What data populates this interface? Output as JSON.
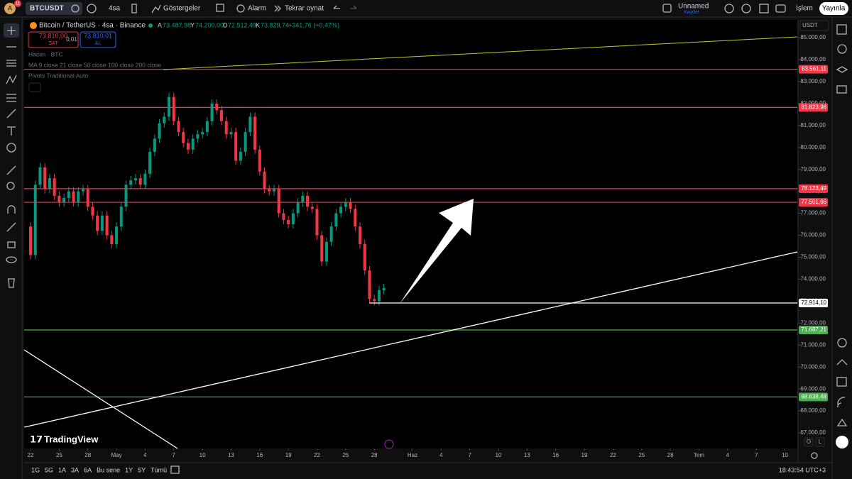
{
  "toolbar": {
    "notifications": "11",
    "symbol": "BTCUSDT",
    "interval": "4sa",
    "indicators": "Göstergeler",
    "alert": "Alarm",
    "replay": "Tekrar oynat",
    "layout_name": "Unnamed",
    "layout_status": "Kaydet",
    "trade": "İşlem",
    "publish": "Yayınla"
  },
  "legend": {
    "title": "Bitcoin / TetherUS · 4sa · Binance",
    "ohlc": [
      {
        "key": "A",
        "value": "73.487,98"
      },
      {
        "key": "Y",
        "value": "74.200,00"
      },
      {
        "key": "D",
        "value": "72.512,49"
      },
      {
        "key": "K",
        "value": "73.829,74"
      }
    ],
    "change": "+341,76 (+0,47%)",
    "sell_price": "73.810,00",
    "sell": "SAT",
    "spread": "0,01",
    "buy_price": "73.810,01",
    "buy": "AL",
    "indicators": [
      "Hacim · BTC",
      "MA 9 close 21 close 50 close 100 close 200 close",
      "Pivots Traditional Auto"
    ]
  },
  "chart_data": {
    "type": "candlestick",
    "currency": "USDT",
    "up_color": "#089981",
    "down_color": "#f23645",
    "x": [
      -0.5,
      0,
      0.5,
      1,
      1.5,
      2,
      2.5,
      3,
      3.5,
      4,
      4.5,
      5,
      5.5,
      6,
      6.5,
      7,
      7.5,
      8,
      8.5,
      9,
      9.5,
      10,
      10.5,
      11,
      11.5,
      12,
      12.5,
      13,
      13.5,
      14,
      14.5,
      15,
      15.5,
      16,
      16.5,
      17,
      17.5,
      18,
      18.5,
      19,
      19.5,
      20,
      20.5,
      21,
      21.5,
      22,
      22.5,
      23,
      23.5,
      24,
      24.5,
      25,
      25.5,
      26,
      26.5,
      27,
      27.5,
      28,
      28.5,
      29,
      29.5,
      30,
      30.5,
      31,
      31.5,
      32,
      32.5,
      33,
      33.5,
      34,
      34.5,
      35,
      35.5,
      36,
      36.5,
      37
    ],
    "values": [
      76400,
      75100,
      78300,
      79100,
      78100,
      78600,
      77800,
      77500,
      77700,
      78000,
      77500,
      78000,
      78100,
      77300,
      76900,
      76200,
      76900,
      76000,
      75600,
      76400,
      77300,
      78300,
      78500,
      78600,
      78300,
      78800,
      79800,
      80400,
      81100,
      81400,
      82300,
      81200,
      80700,
      80200,
      79900,
      80400,
      80600,
      80700,
      81200,
      82000,
      81700,
      81200,
      80600,
      80700,
      79400,
      79800,
      80700,
      81400,
      79900,
      78900,
      78100,
      78000,
      78100,
      77000,
      76700,
      76500,
      77000,
      77500,
      77800,
      77300,
      77200,
      76000,
      74800,
      75700,
      76400,
      77000,
      77300,
      77500,
      77200,
      76400,
      75600,
      74400,
      73100,
      73000,
      73500,
      73600
    ],
    "xlim": [
      -0.67,
      80.3
    ],
    "xticks": [
      {
        "value": 0,
        "label": "22"
      },
      {
        "value": 3,
        "label": "25"
      },
      {
        "value": 6,
        "label": "28"
      },
      {
        "value": 9,
        "label": "May"
      },
      {
        "value": 12,
        "label": "4"
      },
      {
        "value": 15,
        "label": "7"
      },
      {
        "value": 18,
        "label": "10"
      },
      {
        "value": 21,
        "label": "13"
      },
      {
        "value": 24,
        "label": "16"
      },
      {
        "value": 27,
        "label": "19"
      },
      {
        "value": 30,
        "label": "22"
      },
      {
        "value": 33,
        "label": "25"
      },
      {
        "value": 36,
        "label": "28"
      },
      {
        "value": 40,
        "label": "Haz"
      },
      {
        "value": 43,
        "label": "4"
      },
      {
        "value": 46,
        "label": "7"
      },
      {
        "value": 49,
        "label": "10"
      },
      {
        "value": 52,
        "label": "13"
      },
      {
        "value": 55,
        "label": "16"
      },
      {
        "value": 58,
        "label": "19"
      },
      {
        "value": 61,
        "label": "22"
      },
      {
        "value": 64,
        "label": "25"
      },
      {
        "value": 67,
        "label": "28"
      },
      {
        "value": 70,
        "label": "Tem"
      },
      {
        "value": 73,
        "label": "4"
      },
      {
        "value": 76,
        "label": "7"
      },
      {
        "value": 79,
        "label": "10"
      }
    ],
    "ylim": [
      66290,
      85810
    ],
    "yticks": [
      {
        "value": 85000,
        "label": "85.000,00"
      },
      {
        "value": 84000,
        "label": "84.000,00"
      },
      {
        "value": 83000,
        "label": "83.000,00"
      },
      {
        "value": 82000,
        "label": "82.000,00"
      },
      {
        "value": 81000,
        "label": "81.000,00"
      },
      {
        "value": 80000,
        "label": "80.000,00"
      },
      {
        "value": 79000,
        "label": "79.000,00"
      },
      {
        "value": 78000,
        "label": "78.000,00"
      },
      {
        "value": 77000,
        "label": "77.000,00"
      },
      {
        "value": 76000,
        "label": "76.000,00"
      },
      {
        "value": 75000,
        "label": "75.000,00"
      },
      {
        "value": 74000,
        "label": "74.000,00"
      },
      {
        "value": 73000,
        "label": "73.000,00"
      },
      {
        "value": 72000,
        "label": "72.000,00"
      },
      {
        "value": 71000,
        "label": "71.000,00"
      },
      {
        "value": 70000,
        "label": "70.000,00"
      },
      {
        "value": 69000,
        "label": "69.000,00"
      },
      {
        "value": 68000,
        "label": "68.000,00"
      },
      {
        "value": 67000,
        "label": "67.000,00"
      }
    ],
    "levels": [
      {
        "value": 83561.11,
        "label": "83.561,11",
        "color": "#f23645"
      },
      {
        "value": 81823.98,
        "label": "81.823,98",
        "color": "#f23645"
      },
      {
        "value": 78123.49,
        "label": "78.123,49",
        "color": "#f23645"
      },
      {
        "value": 77501.66,
        "label": "77.501,66",
        "color": "#f23645"
      },
      {
        "value": 72914.1,
        "label": "72.914,10",
        "color": "#ffffff",
        "start": 35.5
      },
      {
        "value": 71687.21,
        "label": "71.687,21",
        "color": "#4caf50"
      },
      {
        "value": 68638.48,
        "label": "68.638,48",
        "color": "#4caf50"
      }
    ]
  },
  "bottom": {
    "ranges": [
      "1G",
      "5G",
      "1A",
      "3A",
      "6A",
      "Bu sene",
      "1Y",
      "5Y",
      "Tümü"
    ],
    "clock": "18:43:54 UTC+3",
    "scale_buttons": [
      "O",
      "L"
    ],
    "brand": "TradingView"
  }
}
